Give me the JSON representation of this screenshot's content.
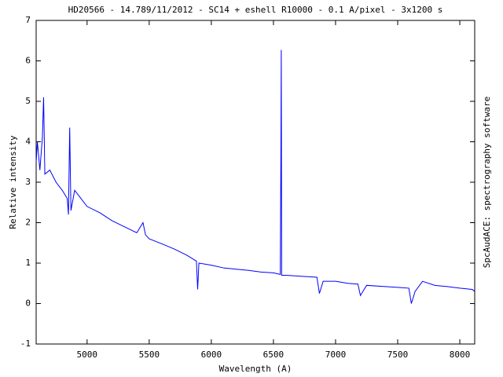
{
  "chart_data": {
    "type": "line",
    "title": "HD20566 - 14.789/11/2012 - SC14 + eshell R10000 - 0.1 A/pixel - 3x1200 s",
    "x_label": "Wavelength (A)",
    "y_label": "Relative intensity",
    "side_note": "SpcAudACE: spectrography software",
    "x": [
      4590,
      4600,
      4620,
      4640,
      4650,
      4660,
      4700,
      4750,
      4800,
      4840,
      4850,
      4860,
      4870,
      4900,
      4950,
      5000,
      5100,
      5200,
      5300,
      5400,
      5450,
      5470,
      5500,
      5600,
      5700,
      5800,
      5880,
      5890,
      5900,
      6000,
      6100,
      6200,
      6300,
      6400,
      6500,
      6555,
      6560,
      6563,
      6566,
      6600,
      6700,
      6850,
      6870,
      6900,
      7000,
      7100,
      7180,
      7200,
      7250,
      7400,
      7500,
      7590,
      7610,
      7640,
      7700,
      7800,
      7900,
      8000,
      8100,
      8120
    ],
    "series": [
      {
        "color": "#0000ff",
        "values": [
          3.5,
          4.0,
          3.3,
          4.1,
          5.1,
          3.2,
          3.3,
          3.0,
          2.8,
          2.6,
          2.2,
          4.35,
          2.3,
          2.8,
          2.6,
          2.4,
          2.25,
          2.05,
          1.9,
          1.75,
          2.0,
          1.7,
          1.6,
          1.48,
          1.35,
          1.2,
          1.05,
          0.35,
          1.0,
          0.95,
          0.88,
          0.85,
          0.82,
          0.78,
          0.76,
          0.72,
          3.7,
          6.27,
          0.7,
          0.7,
          0.68,
          0.65,
          0.25,
          0.55,
          0.55,
          0.5,
          0.48,
          0.2,
          0.45,
          0.42,
          0.4,
          0.38,
          0.0,
          0.3,
          0.55,
          0.45,
          0.42,
          0.38,
          0.35,
          0.3
        ]
      }
    ],
    "xlim": [
      4590,
      8120
    ],
    "ylim": [
      -1,
      7
    ],
    "xticks": [
      5000,
      5500,
      6000,
      6500,
      7000,
      7500,
      8000
    ],
    "yticks": [
      -1,
      0,
      1,
      2,
      3,
      4,
      5,
      6,
      7
    ]
  }
}
